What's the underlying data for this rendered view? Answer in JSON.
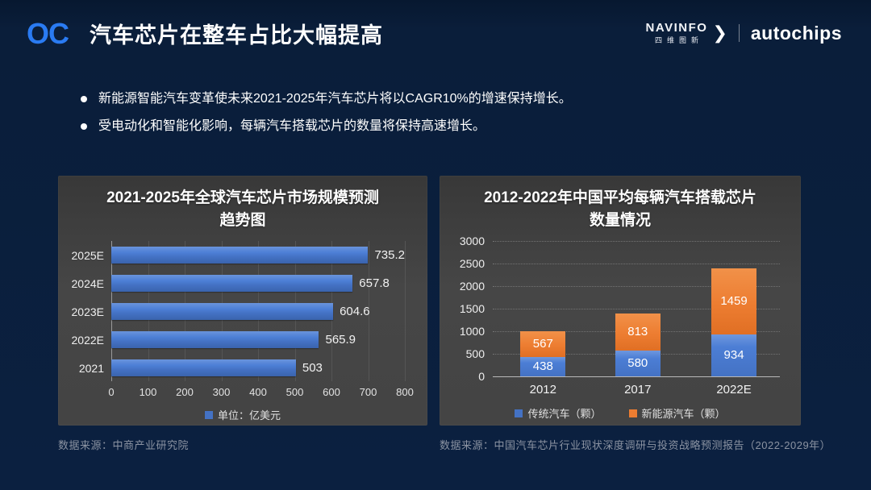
{
  "header": {
    "logo_text": "OC",
    "title": "汽车芯片在整车占比大幅提高",
    "brand": {
      "navinfo_en": "NAVINFO",
      "navinfo_cn": "四维图新",
      "chevron": "❯",
      "autochips": "autochips"
    }
  },
  "bullets": [
    "新能源智能汽车变革使未来2021-2025年汽车芯片将以CAGR10%的增速保持增长。",
    "受电动化和智能化影响，每辆汽车搭载芯片的数量将保持高速增长。"
  ],
  "colors": {
    "background": "#0b2040",
    "panel_gray": "#444444",
    "bar_blue": "#4472c4",
    "bar_orange": "#ed7d31",
    "accent_blue_logo": "#2a7bf2"
  },
  "chart_data": [
    {
      "type": "bar",
      "orientation": "horizontal",
      "title": "2021-2025年全球汽车芯片市场规模预测趋势图",
      "title_lines": [
        "2021-2025年全球汽车芯片市场规模预测",
        "趋势图"
      ],
      "categories": [
        "2025E",
        "2024E",
        "2023E",
        "2022E",
        "2021"
      ],
      "values": [
        735.2,
        657.8,
        604.6,
        565.9,
        503
      ],
      "value_labels": [
        "735.2",
        "657.8",
        "604.6",
        "565.9",
        "503"
      ],
      "xlim": [
        0,
        800
      ],
      "xticks": [
        0,
        100,
        200,
        300,
        400,
        500,
        600,
        700,
        800
      ],
      "grid": "vertical",
      "legend": [
        {
          "label": "单位：亿美元",
          "color": "#4472c4"
        }
      ],
      "legend_position": "bottom",
      "source": "数据来源：中商产业研究院"
    },
    {
      "type": "bar",
      "orientation": "vertical-stacked",
      "title": "2012-2022年中国平均每辆汽车搭载芯片数量情况",
      "title_lines": [
        "2012-2022年中国平均每辆汽车搭载芯片",
        "数量情况"
      ],
      "categories": [
        "2012",
        "2017",
        "2022E"
      ],
      "series": [
        {
          "name": "传统汽车（颗）",
          "color": "#4472c4",
          "values": [
            438,
            580,
            934
          ]
        },
        {
          "name": "新能源汽车（颗）",
          "color": "#ed7d31",
          "values": [
            567,
            813,
            1459
          ]
        }
      ],
      "totals": [
        1005,
        1393,
        2393
      ],
      "ylim": [
        0,
        3000
      ],
      "yticks": [
        0,
        500,
        1000,
        1500,
        2000,
        2500,
        3000
      ],
      "grid": "horizontal-dotted",
      "legend_position": "bottom",
      "source": "数据来源：中国汽车芯片行业现状深度调研与投资战略预测报告（2022-2029年）"
    }
  ]
}
